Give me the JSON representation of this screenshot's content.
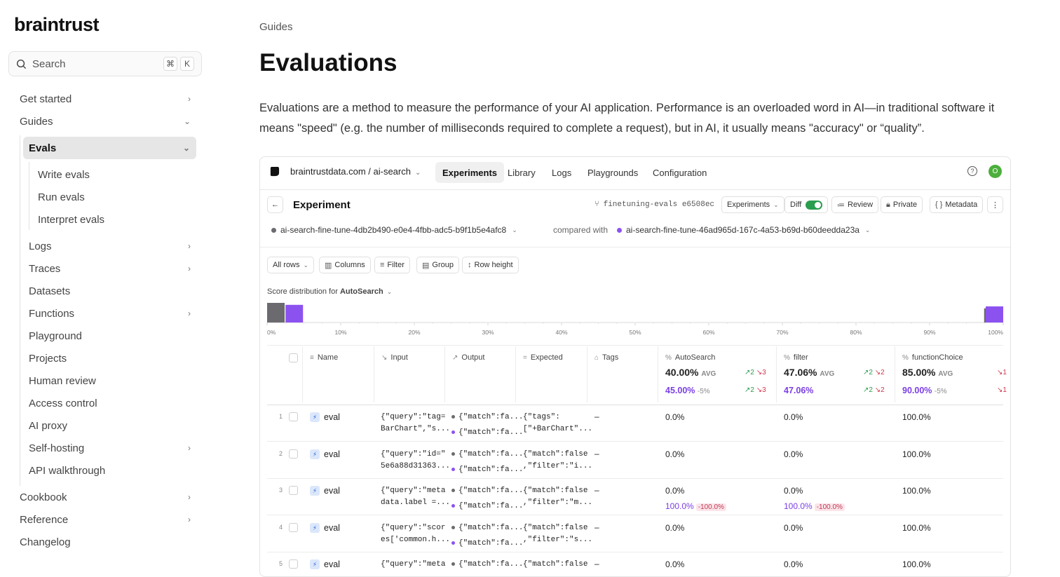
{
  "sidebar": {
    "logo": "braintrust",
    "search_placeholder": "Search",
    "search_kbd": [
      "⌘",
      "K"
    ],
    "items": [
      {
        "label": "Get started"
      },
      {
        "label": "Guides"
      },
      {
        "label": "Evals"
      },
      {
        "label": "Write evals"
      },
      {
        "label": "Run evals"
      },
      {
        "label": "Interpret evals"
      },
      {
        "label": "Logs"
      },
      {
        "label": "Traces"
      },
      {
        "label": "Datasets"
      },
      {
        "label": "Functions"
      },
      {
        "label": "Playground"
      },
      {
        "label": "Projects"
      },
      {
        "label": "Human review"
      },
      {
        "label": "Access control"
      },
      {
        "label": "AI proxy"
      },
      {
        "label": "Self-hosting"
      },
      {
        "label": "API walkthrough"
      },
      {
        "label": "Cookbook"
      },
      {
        "label": "Reference"
      },
      {
        "label": "Changelog"
      }
    ]
  },
  "page": {
    "breadcrumb": "Guides",
    "title": "Evaluations",
    "intro": "Evaluations are a method to measure the performance of your AI application. Performance is an overloaded word in AI—in traditional software it means \"speed\" (e.g. the number of milliseconds required to complete a request), but in AI, it usually means \"accuracy\" or “quality”."
  },
  "app": {
    "project": "braintrustdata.com / ai-search",
    "tabs": [
      "Experiments",
      "Library",
      "Logs",
      "Playgrounds",
      "Configuration"
    ],
    "avatar": "O",
    "experiment_title": "Experiment",
    "branch": "finetuning-evals e6508ec",
    "buttons": {
      "experiments": "Experiments",
      "diff": "Diff",
      "review": "Review",
      "private": "Private",
      "metadata": "Metadata"
    },
    "exp_a": "ai-search-fine-tune-4db2b490-e0e4-4fbb-adc5-b9f1b5e4afc8",
    "compared_with": "compared with",
    "exp_b": "ai-search-fine-tune-46ad965d-167c-4a53-b69d-b60deedda23a",
    "toolbar": {
      "all_rows": "All rows",
      "columns": "Columns",
      "filter": "Filter",
      "group": "Group",
      "row_height": "Row height"
    },
    "dist_label": "Score distribution for",
    "dist_metric": "AutoSearch",
    "colors": {
      "gray": "#6b6b6f",
      "purple": "#8c52f0",
      "green_toggle": "#2a9d4e"
    }
  },
  "chart_data": {
    "type": "bar",
    "title": "Score distribution for AutoSearch",
    "x_ticks": [
      "0%",
      "10%",
      "20%",
      "30%",
      "40%",
      "50%",
      "60%",
      "70%",
      "80%",
      "90%",
      "100%"
    ],
    "xlim": [
      0,
      100
    ],
    "series": [
      {
        "color": "#6b6b6f",
        "bins": [
          {
            "x": 0,
            "h": 1.0
          },
          {
            "x": 97.5,
            "h": 0.72
          }
        ]
      },
      {
        "color": "#8c52f0",
        "bins": [
          {
            "x": 2.5,
            "h": 0.9
          },
          {
            "x": 100,
            "h": 0.82
          }
        ]
      }
    ]
  },
  "table": {
    "headers": {
      "name": "Name",
      "input": "Input",
      "output": "Output",
      "expected": "Expected",
      "tags": "Tags"
    },
    "scores": [
      {
        "name": "AutoSearch",
        "avg": "40.00%",
        "avg_lbl": "AVG",
        "up": "↗2",
        "down": "↘3",
        "cmp": "45.00%",
        "cmp_diff": "-5%",
        "cmp_up": "↗2",
        "cmp_down": "↘3"
      },
      {
        "name": "filter",
        "avg": "47.06%",
        "avg_lbl": "AVG",
        "up": "↗2",
        "down": "↘2",
        "cmp": "47.06%",
        "cmp_diff": "",
        "cmp_up": "↗2",
        "cmp_down": "↘2"
      },
      {
        "name": "functionChoice",
        "avg": "85.00%",
        "avg_lbl": "AVG",
        "up": "",
        "down": "↘1",
        "cmp": "90.00%",
        "cmp_diff": "-5%",
        "cmp_up": "",
        "cmp_down": "↘1"
      }
    ],
    "rows": [
      {
        "num": "1",
        "name": "eval",
        "input": [
          "{\"query\":\"tag=",
          "BarChart\",\"s..."
        ],
        "output": [
          "{\"match\":fa...",
          "{\"match\":fa..."
        ],
        "expected": [
          "{\"tags\":",
          "[\"+BarChart\"..."
        ],
        "tags": "–",
        "s1": "0.0%",
        "s2": "0.0%",
        "s3": "100.0%",
        "c1": "",
        "c1d": "",
        "c2": "",
        "c2d": ""
      },
      {
        "num": "2",
        "name": "eval",
        "input": [
          "{\"query\":\"id=\"",
          "5e6a88d31363..."
        ],
        "output": [
          "{\"match\":fa...",
          "{\"match\":fa..."
        ],
        "expected": [
          "{\"match\":false",
          ",\"filter\":\"i..."
        ],
        "tags": "–",
        "s1": "0.0%",
        "s2": "0.0%",
        "s3": "100.0%",
        "c1": "",
        "c1d": "",
        "c2": "",
        "c2d": ""
      },
      {
        "num": "3",
        "name": "eval",
        "input": [
          "{\"query\":\"meta",
          "data.label =..."
        ],
        "output": [
          "{\"match\":fa...",
          "{\"match\":fa..."
        ],
        "expected": [
          "{\"match\":false",
          ",\"filter\":\"m..."
        ],
        "tags": "–",
        "s1": "0.0%",
        "s2": "0.0%",
        "s3": "100.0%",
        "c1": "100.0%",
        "c1d": "-100.0%",
        "c2": "100.0%",
        "c2d": "-100.0%"
      },
      {
        "num": "4",
        "name": "eval",
        "input": [
          "{\"query\":\"scor",
          "es['common.h..."
        ],
        "output": [
          "{\"match\":fa...",
          "{\"match\":fa..."
        ],
        "expected": [
          "{\"match\":false",
          ",\"filter\":\"s..."
        ],
        "tags": "–",
        "s1": "0.0%",
        "s2": "0.0%",
        "s3": "100.0%",
        "c1": "",
        "c1d": "",
        "c2": "",
        "c2d": ""
      },
      {
        "num": "5",
        "name": "eval",
        "input": [
          "{\"query\":\"meta",
          ""
        ],
        "output": [
          "{\"match\":fa...",
          ""
        ],
        "expected": [
          "{\"match\":false",
          ""
        ],
        "tags": "–",
        "s1": "0.0%",
        "s2": "0.0%",
        "s3": "100.0%",
        "c1": "",
        "c1d": "",
        "c2": "",
        "c2d": ""
      }
    ]
  }
}
